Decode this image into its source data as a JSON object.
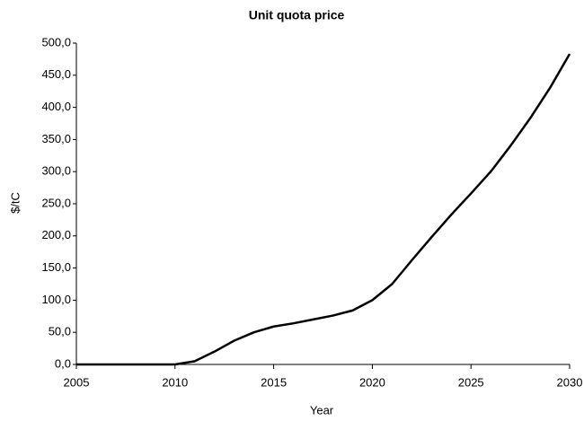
{
  "chart_data": {
    "type": "line",
    "title": "Unit quota price",
    "x_label": "Year",
    "y_label": "$/tC",
    "x": [
      2005,
      2006,
      2007,
      2008,
      2009,
      2010,
      2011,
      2012,
      2013,
      2014,
      2015,
      2016,
      2017,
      2018,
      2019,
      2020,
      2021,
      2022,
      2023,
      2024,
      2025,
      2026,
      2027,
      2028,
      2029,
      2030
    ],
    "series": [
      {
        "name": "Unit quota price",
        "color": "#000000",
        "values": [
          0,
          0,
          0,
          0,
          0,
          0,
          5,
          20,
          37,
          50,
          59,
          64,
          70,
          76,
          84,
          100,
          125,
          162,
          198,
          233,
          266,
          300,
          340,
          383,
          430,
          483
        ]
      }
    ],
    "xlim": [
      2005,
      2030
    ],
    "xticks": [
      2005,
      2010,
      2015,
      2020,
      2025,
      2030
    ],
    "ylim": [
      0,
      500
    ],
    "yticks": [
      {
        "value": 0,
        "label": "0,0"
      },
      {
        "value": 50,
        "label": "50,0"
      },
      {
        "value": 100,
        "label": "100,0"
      },
      {
        "value": 150,
        "label": "150,0"
      },
      {
        "value": 200,
        "label": "200,0"
      },
      {
        "value": 250,
        "label": "250,0"
      },
      {
        "value": 300,
        "label": "300,0"
      },
      {
        "value": 350,
        "label": "350,0"
      },
      {
        "value": 400,
        "label": "400,0"
      },
      {
        "value": 450,
        "label": "450,0"
      },
      {
        "value": 500,
        "label": "500,0"
      }
    ],
    "grid": false
  }
}
